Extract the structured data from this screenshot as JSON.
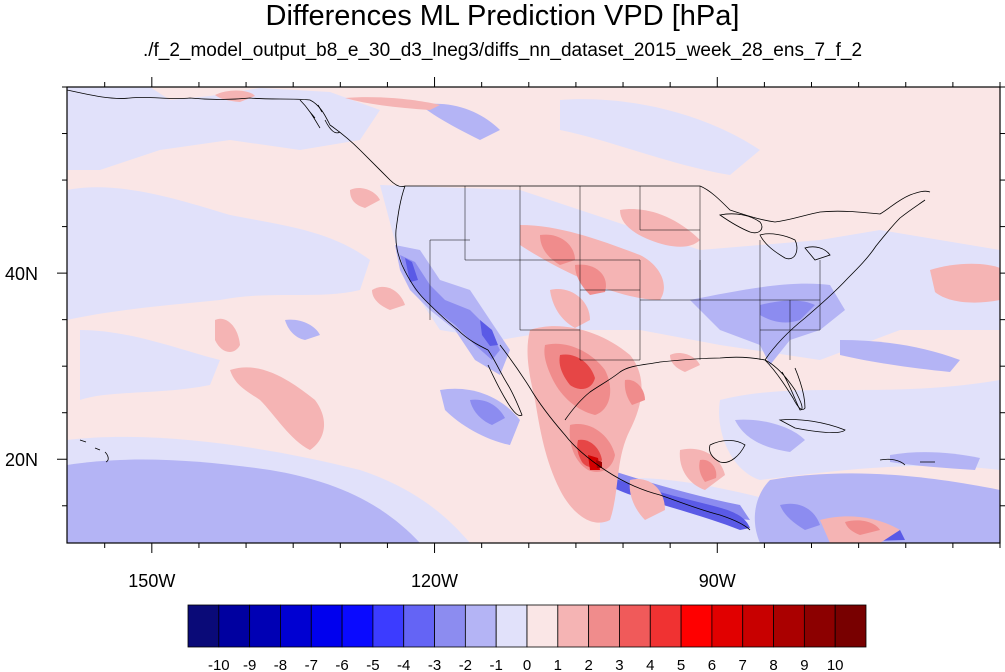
{
  "title": "Differences ML Prediction VPD [hPa]",
  "subtitle": "./f_2_model_output_b8_e_30_d3_lneg3/diffs_nn_dataset_2015_week_28_ens_7_f_2",
  "axes": {
    "lon_ticks": [
      {
        "lon": -150,
        "label": "150W"
      },
      {
        "lon": -120,
        "label": "120W"
      },
      {
        "lon": -90,
        "label": "90W"
      }
    ],
    "lat_ticks": [
      {
        "lat": 40,
        "label": "40N"
      },
      {
        "lat": 20,
        "label": "20N"
      }
    ],
    "lon_range": [
      -159,
      -60
    ],
    "lat_range": [
      11,
      60
    ]
  },
  "colorbar": {
    "labels": [
      "-10",
      "-9",
      "-8",
      "-7",
      "-6",
      "-5",
      "-4",
      "-3",
      "-2",
      "-1",
      "0",
      "1",
      "2",
      "3",
      "4",
      "5",
      "6",
      "7",
      "8",
      "9",
      "10"
    ],
    "colors": [
      "#0a0a78",
      "#0000a0",
      "#0000b4",
      "#0000d2",
      "#0000ee",
      "#0a0aff",
      "#3c3cff",
      "#6464f5",
      "#8c8cf0",
      "#b4b4f5",
      "#e1e1fa",
      "#fae6e6",
      "#f5b4b4",
      "#f08c8c",
      "#f05a5a",
      "#f03232",
      "#ff0000",
      "#e10000",
      "#c80000",
      "#aa0000",
      "#8c0000",
      "#780000"
    ]
  },
  "colors": {
    "background_field": "#fae6e6",
    "light_blue": "#e1e1fa",
    "blue": "#b4b4f5",
    "mid_blue": "#8c8cf0",
    "dark_blue": "#5050e6",
    "light_red": "#f5b4b4",
    "red": "#f08c8c",
    "dark_red": "#e64646"
  }
}
